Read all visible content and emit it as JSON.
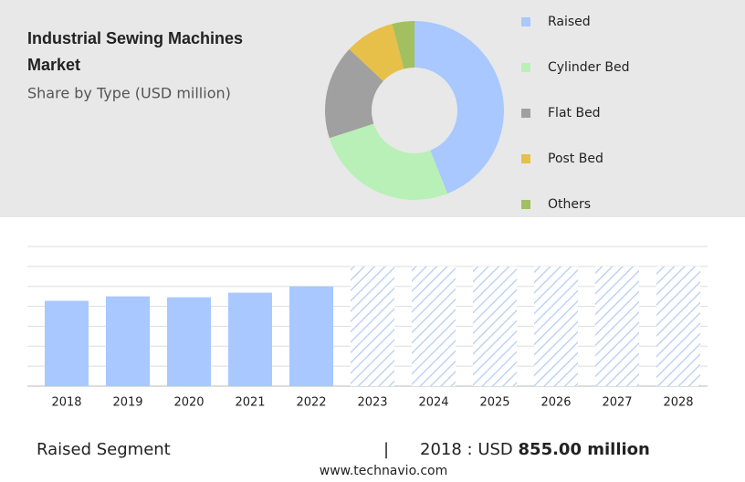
{
  "chart_data": [
    {
      "type": "donut",
      "title": "Industrial Sewing Machines Market",
      "subtitle": "Share by Type (USD million)",
      "categories": [
        "Raised",
        "Cylinder Bed",
        "Flat Bed",
        "Post Bed",
        "Others"
      ],
      "values": [
        44,
        26,
        17,
        9,
        4
      ],
      "colors": [
        "#a8c8ff",
        "#b8f0b8",
        "#a0a0a0",
        "#e6c048",
        "#a2c060"
      ]
    },
    {
      "type": "bar",
      "categories": [
        "2018",
        "2019",
        "2020",
        "2021",
        "2022",
        "2023",
        "2024",
        "2025",
        "2026",
        "2027",
        "2028"
      ],
      "values": [
        855,
        900,
        891,
        937,
        1000,
        1200,
        1200,
        1200,
        1200,
        1200,
        1200
      ],
      "hatched": [
        false,
        false,
        false,
        false,
        false,
        true,
        true,
        true,
        true,
        true,
        true
      ],
      "color": "#a8c8ff",
      "ylim": [
        0,
        1400
      ],
      "yticks": [
        0,
        200,
        400,
        600,
        800,
        1000,
        1200,
        1400
      ],
      "grid": true
    }
  ],
  "footer": {
    "segment": "Raised Segment",
    "separator": "|",
    "year_text": "2018 : USD",
    "highlight": "855.00 million",
    "source": "www.technavio.com"
  }
}
